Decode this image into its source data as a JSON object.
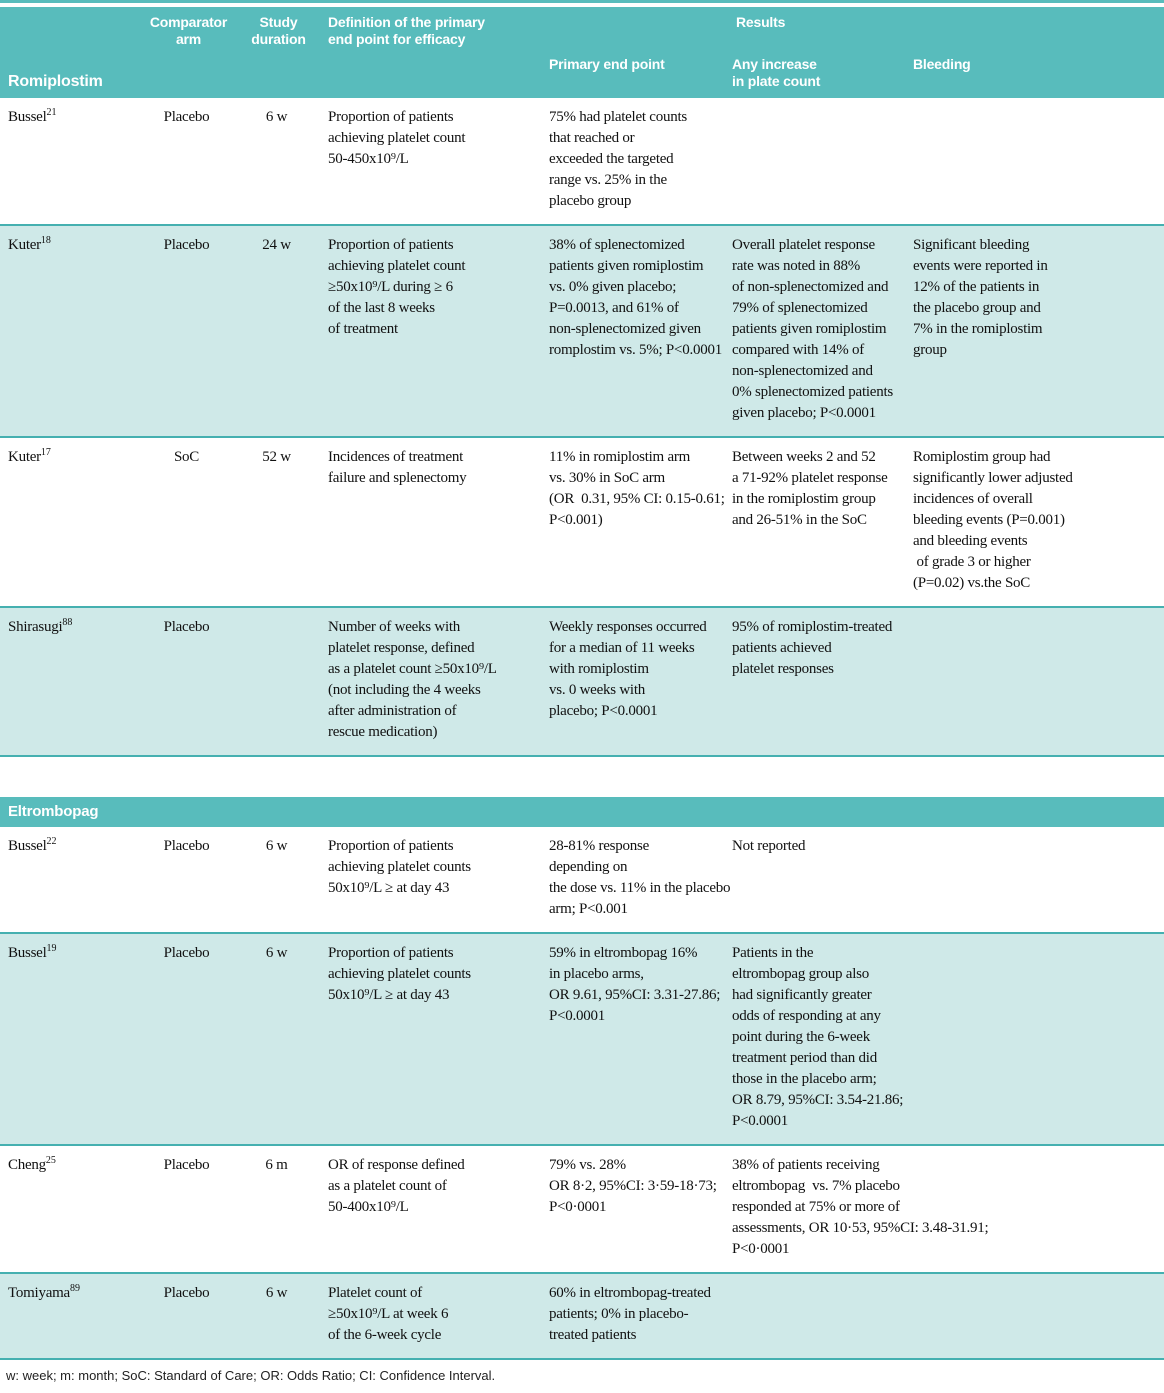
{
  "colors": {
    "header_bg": "#58bcbc",
    "row_alt_bg": "#cfe9e8",
    "rule": "#45b0b0",
    "text": "#111111",
    "header_text": "#ffffff"
  },
  "table": {
    "header": {
      "group_title": "Romiplostim",
      "comparator": "Comparator\narm",
      "duration": "Study\nduration",
      "definition": "Definition of the primary\nend point for efficacy",
      "results": "Results",
      "primary": "Primary end point",
      "increase": "Any increase\nin plate count",
      "bleeding": "Bleeding"
    },
    "sections": [
      {
        "title": "",
        "rows": [
          {
            "study": "Bussel",
            "ref": "21",
            "comparator": "Placebo",
            "duration": "6 w",
            "definition": "Proportion of patients\nachieving platelet count\n50-450x10⁹/L",
            "primary": "75% had platelet counts\nthat reached or\nexceeded the targeted\nrange vs. 25% in the\nplacebo group",
            "increase": "",
            "bleeding": ""
          },
          {
            "study": "Kuter",
            "ref": "18",
            "comparator": "Placebo",
            "duration": "24 w",
            "definition": "Proportion of patients\nachieving platelet count\n≥50x10⁹/L during ≥ 6\nof the last 8 weeks\nof treatment",
            "primary": "38% of splenectomized\npatients given romiplostim\nvs. 0% given placebo;\nP=0.0013, and 61% of\nnon-splenectomized given\nromplostim vs. 5%; P<0.0001",
            "increase": "Overall platelet response\nrate was noted in 88%\nof non-splenectomized and\n79% of splenectomized\npatients given romiplostim\ncompared with 14% of\nnon-splenectomized and\n0% splenectomized patients\ngiven placebo; P<0.0001",
            "bleeding": "Significant bleeding\nevents were reported in\n12% of the patients in\nthe placebo group and\n7% in the romiplostim\ngroup"
          },
          {
            "study": "Kuter",
            "ref": "17",
            "comparator": "SoC",
            "duration": "52 w",
            "definition": "Incidences of treatment\nfailure and splenectomy",
            "primary": "11% in romiplostim arm\nvs. 30% in SoC arm\n(OR  0.31, 95% CI: 0.15-0.61;\nP<0.001)",
            "increase": "Between weeks 2 and 52\na 71-92% platelet response\nin the romiplostim group\nand 26-51% in the SoC",
            "bleeding": "Romiplostim group had\nsignificantly lower adjusted\nincidences of overall\nbleeding events (P=0.001)\nand bleeding events\n of grade 3 or higher\n(P=0.02) vs.the SoC"
          },
          {
            "study": "Shirasugi",
            "ref": "88",
            "comparator": "Placebo",
            "duration": "",
            "definition": "Number of weeks with\nplatelet response, defined\nas a platelet count ≥50x10⁹/L\n(not including the 4 weeks\nafter administration of\nrescue medication)",
            "primary": "Weekly responses occurred\nfor a median of 11 weeks\nwith romiplostim\nvs. 0 weeks with\nplacebo; P<0.0001",
            "increase": "95% of romiplostim-treated\npatients achieved\nplatelet responses",
            "bleeding": ""
          }
        ]
      },
      {
        "title": "Eltrombopag",
        "rows": [
          {
            "study": "Bussel",
            "ref": "22",
            "comparator": "Placebo",
            "duration": "6 w",
            "definition": "Proportion of patients\nachieving platelet counts\n50x10⁹/L ≥ at day 43",
            "primary": "28-81% response\ndepending on\nthe dose vs. 11% in the placebo\narm; P<0.001",
            "increase": "Not reported",
            "bleeding": ""
          },
          {
            "study": "Bussel",
            "ref": "19",
            "comparator": "Placebo",
            "duration": "6 w",
            "definition": "Proportion of patients\nachieving platelet counts\n50x10⁹/L ≥ at day 43",
            "primary": "59% in eltrombopag 16%\nin placebo arms,\nOR 9.61, 95%CI: 3.31-27.86;\nP<0.0001",
            "increase": "Patients in the\neltrombopag group also\nhad significantly greater\nodds of responding at any\npoint during the 6-week\ntreatment period than did\nthose in the placebo arm;\nOR 8.79, 95%CI: 3.54-21.86;\nP<0.0001",
            "bleeding": ""
          },
          {
            "study": "Cheng",
            "ref": "25",
            "comparator": "Placebo",
            "duration": "6 m",
            "definition": "OR of response defined\nas a platelet count of\n50-400x10⁹/L",
            "primary": "79% vs. 28%\nOR 8·2, 95%CI: 3·59-18·73;\nP<0·0001",
            "increase": "38% of patients receiving\neltrombopag  vs. 7% placebo\nresponded at 75% or more of\nassessments, OR 10·53, 95%CI: 3.48-31.91;\nP<0·0001",
            "bleeding": ""
          },
          {
            "study": "Tomiyama",
            "ref": "89",
            "comparator": "Placebo",
            "duration": "6 w",
            "definition": "Platelet count of\n≥50x10⁹/L at week 6\nof the 6-week cycle",
            "primary": "60% in eltrombopag-treated\npatients; 0% in placebo-\ntreated patients",
            "increase": "",
            "bleeding": ""
          }
        ]
      }
    ],
    "footnote": "w: week; m: month; SoC: Standard of Care; OR: Odds Ratio; CI: Confidence Interval."
  }
}
